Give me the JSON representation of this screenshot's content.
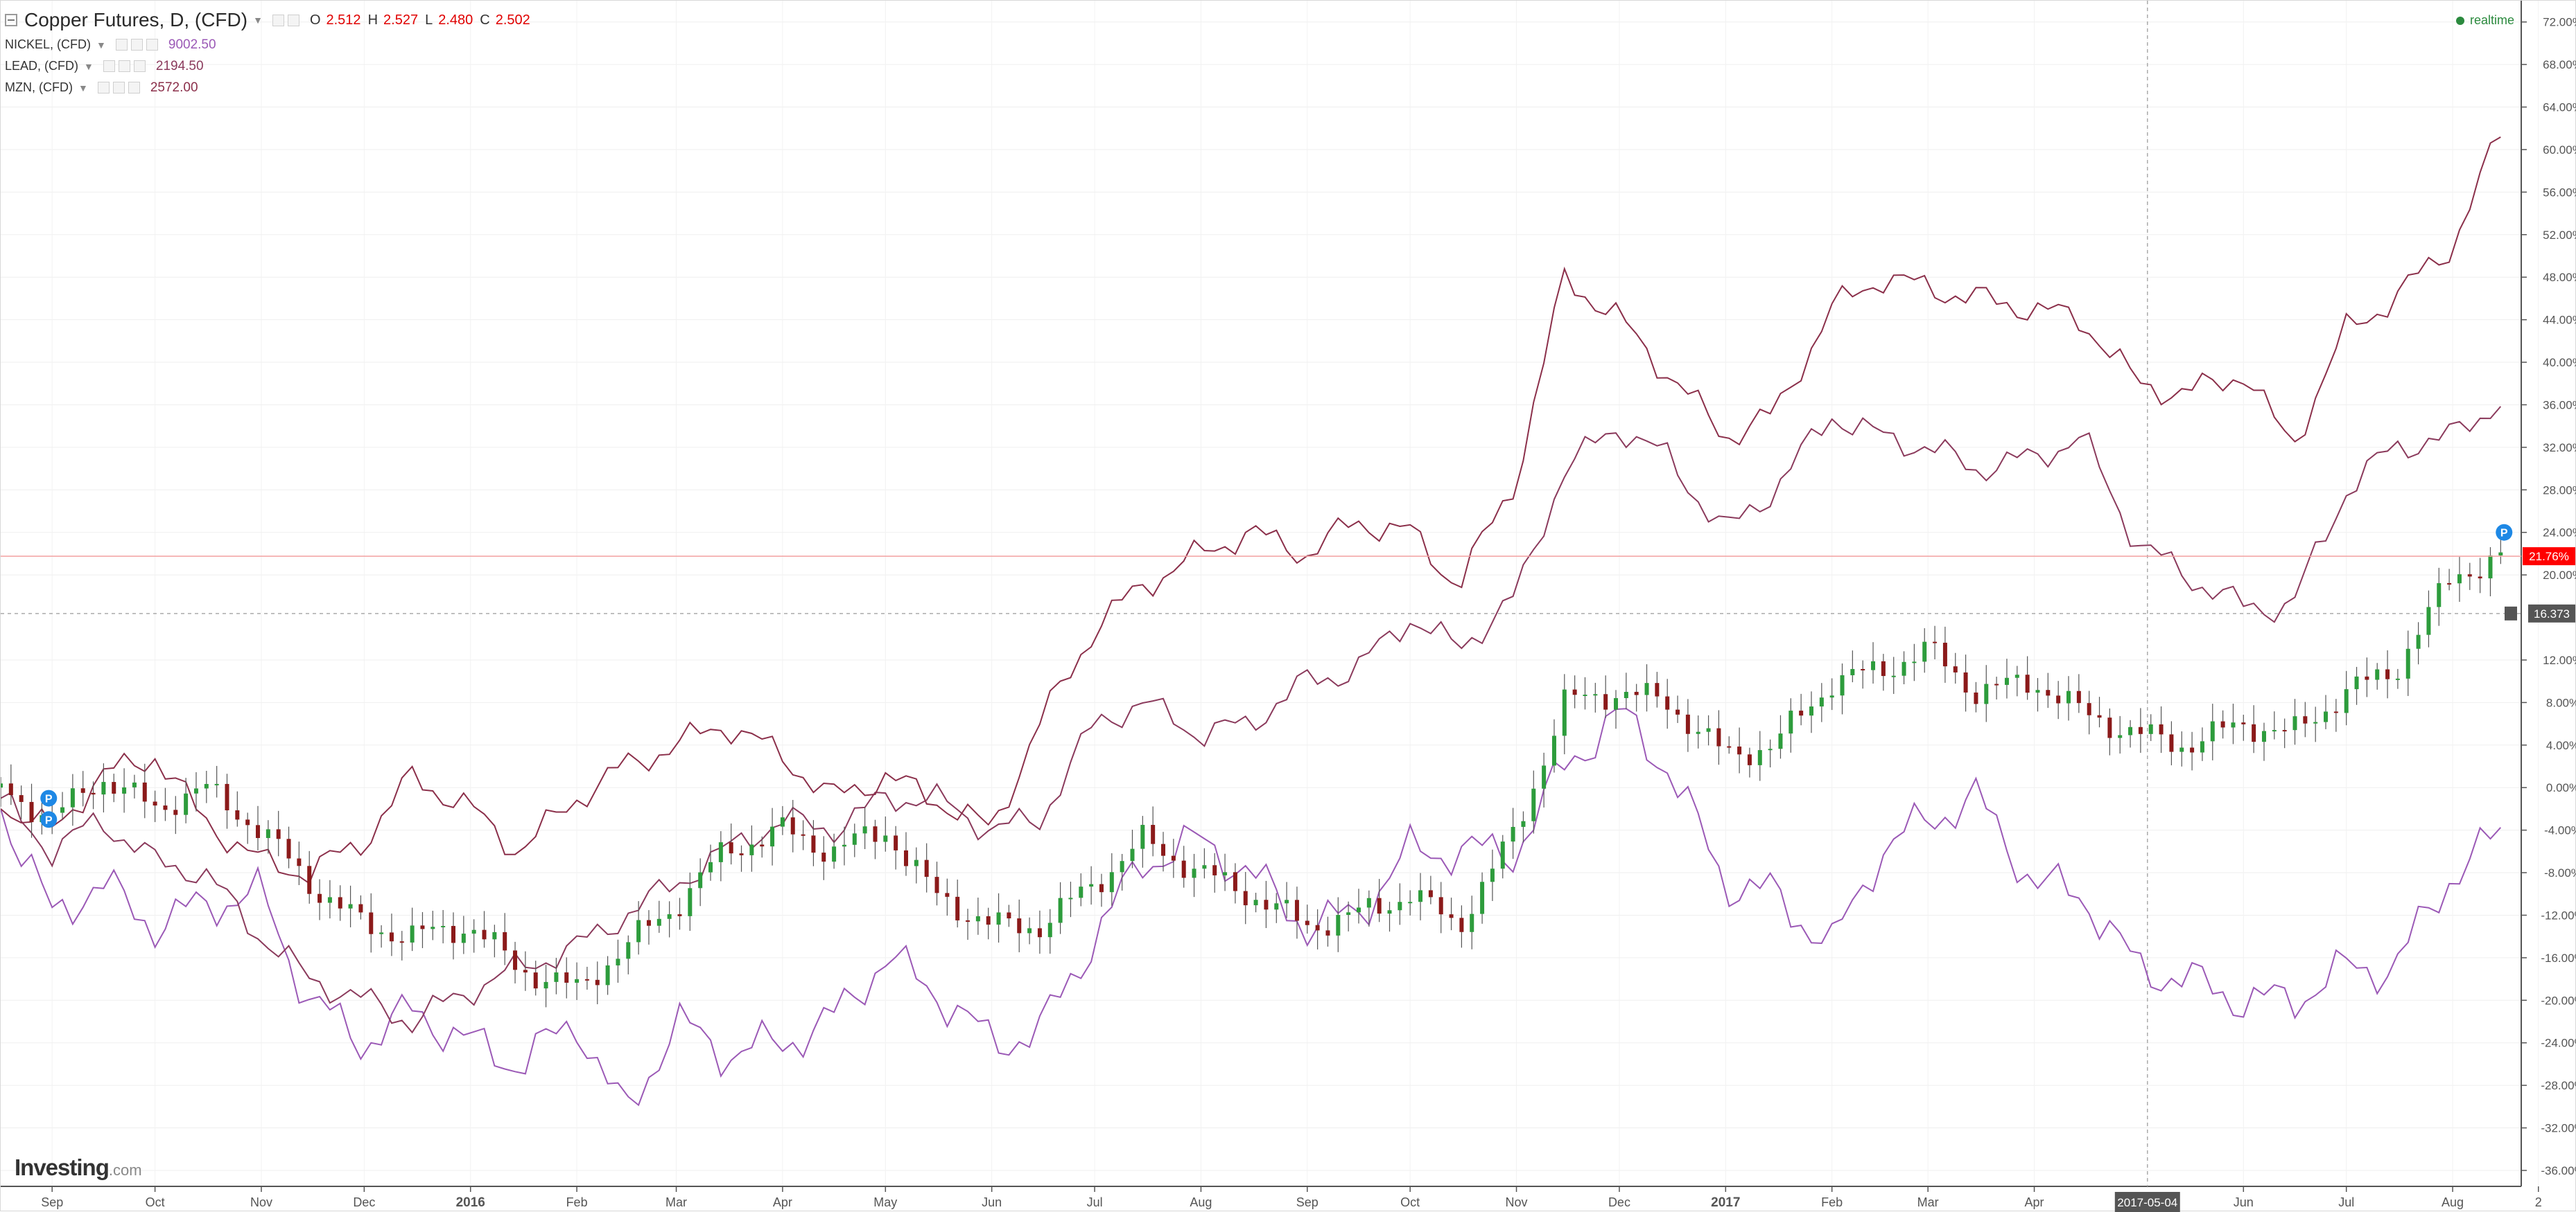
{
  "header": {
    "title": "Copper Futures, D, (CFD)",
    "ohlc": [
      {
        "label": "O",
        "value": "2.512"
      },
      {
        "label": "H",
        "value": "2.527"
      },
      {
        "label": "L",
        "value": "2.480"
      },
      {
        "label": "C",
        "value": "2.502"
      }
    ]
  },
  "comparisons": [
    {
      "symbol": "NICKEL, (CFD)",
      "value": "9002.50",
      "color": "#9b59b6"
    },
    {
      "symbol": "LEAD, (CFD)",
      "value": "2194.50",
      "color": "#8b3a5c"
    },
    {
      "symbol": "MZN, (CFD)",
      "value": "2572.00",
      "color": "#8b2f4a"
    }
  ],
  "status": {
    "realtime": "realtime"
  },
  "brand": {
    "name": "Investing",
    "suffix": ".com"
  },
  "chart_data": {
    "type": "line",
    "title": "Copper Futures, D, (CFD)",
    "y_unit": "percent change",
    "ylim": [
      -37.5,
      74
    ],
    "y_ticks": [
      "72.00%",
      "68.00%",
      "64.00%",
      "60.00%",
      "56.00%",
      "52.00%",
      "48.00%",
      "44.00%",
      "40.00%",
      "36.00%",
      "32.00%",
      "28.00%",
      "24.00%",
      "20.00%",
      "12.00%",
      "8.00%",
      "4.00%",
      "0.00%",
      "-4.00%",
      "-8.00%",
      "-12.00%",
      "-16.00%",
      "-20.00%",
      "-24.00%",
      "-28.00%",
      "-32.00%",
      "-36.00%"
    ],
    "x_ticks": [
      "Sep",
      "Oct",
      "Nov",
      "Dec",
      "2016",
      "Feb",
      "Mar",
      "Apr",
      "May",
      "Jun",
      "Jul",
      "Aug",
      "Sep",
      "Oct",
      "Nov",
      "Dec",
      "2017",
      "Feb",
      "Mar",
      "Apr",
      "2017-05-04",
      "Jun",
      "Jul",
      "Aug",
      "2"
    ],
    "x_bold_ticks": [
      "2016",
      "2017"
    ],
    "x_range": [
      "2015-08-17",
      "2017-08-21"
    ],
    "grid": true,
    "crosshair": {
      "x_label": "2017-05-04",
      "y_label": "16.373",
      "y": 16.373
    },
    "last_value": {
      "label": "21.76%",
      "value": 21.76,
      "color": "#ff0000"
    },
    "series": [
      {
        "name": "Copper Futures, D, (CFD)",
        "style": "candlestick",
        "up_color": "#2d9c3c",
        "down_color": "#8b1a1a",
        "dates": [
          "2015-08-17",
          "2015-09-01",
          "2015-09-15",
          "2015-10-01",
          "2015-10-15",
          "2015-11-01",
          "2015-11-15",
          "2015-12-01",
          "2015-12-15",
          "2016-01-01",
          "2016-01-15",
          "2016-02-01",
          "2016-02-15",
          "2016-03-01",
          "2016-03-15",
          "2016-04-01",
          "2016-04-15",
          "2016-05-01",
          "2016-05-15",
          "2016-06-01",
          "2016-06-15",
          "2016-07-01",
          "2016-07-15",
          "2016-08-01",
          "2016-08-15",
          "2016-09-01",
          "2016-09-15",
          "2016-10-01",
          "2016-10-15",
          "2016-11-01",
          "2016-11-15",
          "2016-12-01",
          "2016-12-15",
          "2017-01-01",
          "2017-01-15",
          "2017-02-01",
          "2017-02-15",
          "2017-03-01",
          "2017-03-15",
          "2017-04-01",
          "2017-04-15",
          "2017-05-01",
          "2017-05-15",
          "2017-06-01",
          "2017-06-15",
          "2017-07-01",
          "2017-07-15",
          "2017-08-01",
          "2017-08-17"
        ],
        "values": [
          0,
          -3,
          1,
          -2,
          0,
          -4,
          -9,
          -13,
          -14,
          -13,
          -17,
          -19,
          -15,
          -11,
          -6,
          -4,
          -6,
          -4,
          -10,
          -13,
          -13,
          -9,
          -5,
          -8,
          -10,
          -13,
          -12,
          -10,
          -13,
          -4,
          8,
          9,
          8,
          3,
          4,
          10,
          11,
          13,
          9,
          10,
          7,
          5,
          4,
          6,
          5,
          9,
          11,
          20,
          21.76
        ],
        "period": 1.2,
        "amplitude": 1.5
      },
      {
        "name": "NICKEL, (CFD)",
        "style": "line",
        "color": "#9b59b6",
        "dates": [
          "2015-08-17",
          "2015-09-01",
          "2015-09-15",
          "2015-10-01",
          "2015-10-15",
          "2015-11-01",
          "2015-11-15",
          "2015-12-01",
          "2015-12-15",
          "2016-01-01",
          "2016-01-15",
          "2016-02-01",
          "2016-02-15",
          "2016-03-01",
          "2016-03-15",
          "2016-04-01",
          "2016-04-15",
          "2016-05-01",
          "2016-05-15",
          "2016-06-01",
          "2016-06-15",
          "2016-07-01",
          "2016-07-15",
          "2016-08-01",
          "2016-08-15",
          "2016-09-01",
          "2016-09-15",
          "2016-10-01",
          "2016-10-15",
          "2016-11-01",
          "2016-11-15",
          "2016-12-01",
          "2016-12-15",
          "2017-01-01",
          "2017-01-15",
          "2017-02-01",
          "2017-02-15",
          "2017-03-01",
          "2017-03-15",
          "2017-04-01",
          "2017-04-15",
          "2017-05-01",
          "2017-05-15",
          "2017-06-01",
          "2017-06-15",
          "2017-07-01",
          "2017-07-15",
          "2017-08-01",
          "2017-08-17"
        ],
        "values": [
          -2,
          -12,
          -9,
          -13,
          -11,
          -10,
          -20,
          -24,
          -21,
          -24,
          -26,
          -22,
          -31,
          -22,
          -25,
          -24,
          -22,
          -16,
          -19,
          -24,
          -23,
          -14,
          -7,
          -5,
          -8,
          -13,
          -12,
          -6,
          -6,
          -6,
          2,
          7,
          2,
          -9,
          -10,
          -15,
          -6,
          -3,
          -1,
          -9,
          -10,
          -17,
          -18,
          -20,
          -20,
          -17,
          -17,
          -8,
          -4
        ],
        "period": 0.9,
        "amplitude": 2.5
      },
      {
        "name": "LEAD, (CFD)",
        "style": "line",
        "color": "#8b3a5c",
        "dates": [
          "2015-08-17",
          "2015-09-01",
          "2015-09-15",
          "2015-10-01",
          "2015-10-15",
          "2015-11-01",
          "2015-11-15",
          "2015-12-01",
          "2015-12-15",
          "2016-01-01",
          "2016-01-15",
          "2016-02-01",
          "2016-02-15",
          "2016-03-01",
          "2016-03-15",
          "2016-04-01",
          "2016-04-15",
          "2016-05-01",
          "2016-05-15",
          "2016-06-01",
          "2016-06-15",
          "2016-07-01",
          "2016-07-15",
          "2016-08-01",
          "2016-08-15",
          "2016-09-01",
          "2016-09-15",
          "2016-10-01",
          "2016-10-15",
          "2016-11-01",
          "2016-11-15",
          "2016-12-01",
          "2016-12-15",
          "2017-01-01",
          "2017-01-15",
          "2017-02-01",
          "2017-02-15",
          "2017-03-01",
          "2017-03-15",
          "2017-04-01",
          "2017-04-15",
          "2017-05-01",
          "2017-05-15",
          "2017-06-01",
          "2017-06-15",
          "2017-07-01",
          "2017-07-15",
          "2017-08-01",
          "2017-08-17"
        ],
        "values": [
          -1,
          -6,
          -3,
          -7,
          -8,
          -14,
          -18,
          -20,
          -22,
          -19,
          -17,
          -15,
          -12,
          -9,
          -6,
          -3,
          -4,
          -1,
          -1,
          -4,
          -3,
          6,
          8,
          5,
          6,
          10,
          11,
          16,
          13,
          18,
          30,
          34,
          31,
          24,
          28,
          35,
          33,
          32,
          30,
          31,
          33,
          23,
          20,
          17,
          17,
          28,
          32,
          33,
          37
        ]
      },
      {
        "name": "MZN, (CFD)",
        "style": "line",
        "color": "#8b2f4a",
        "dates": [
          "2015-08-17",
          "2015-09-01",
          "2015-09-15",
          "2015-10-01",
          "2015-10-15",
          "2015-11-01",
          "2015-11-15",
          "2015-12-01",
          "2015-12-15",
          "2016-01-01",
          "2016-01-15",
          "2016-02-01",
          "2016-02-15",
          "2016-03-01",
          "2016-03-15",
          "2016-04-01",
          "2016-04-15",
          "2016-05-01",
          "2016-05-15",
          "2016-06-01",
          "2016-06-15",
          "2016-07-01",
          "2016-07-15",
          "2016-08-01",
          "2016-08-15",
          "2016-09-01",
          "2016-09-15",
          "2016-10-01",
          "2016-10-15",
          "2016-11-01",
          "2016-11-15",
          "2016-12-01",
          "2016-12-15",
          "2017-01-01",
          "2017-01-15",
          "2017-02-01",
          "2017-02-15",
          "2017-03-01",
          "2017-03-15",
          "2017-04-01",
          "2017-04-15",
          "2017-05-01",
          "2017-05-15",
          "2017-06-01",
          "2017-06-15",
          "2017-07-01",
          "2017-07-15",
          "2017-08-01",
          "2017-08-17"
        ],
        "values": [
          -2,
          -4,
          1,
          3,
          -3,
          -7,
          -8,
          -5,
          1,
          -2,
          -6,
          -1,
          2,
          4,
          6,
          3,
          -1,
          1,
          -1,
          -4,
          6,
          15,
          19,
          22,
          24,
          22,
          25,
          24,
          19,
          29,
          48,
          44,
          39,
          33,
          35,
          45,
          48,
          47,
          46,
          45,
          44,
          38,
          37,
          39,
          32,
          43,
          46,
          51,
          63
        ]
      }
    ],
    "markers": [
      {
        "label": "P",
        "date": "2015-08-31",
        "value": -1
      },
      {
        "label": "P",
        "date": "2015-08-31",
        "value": -3
      },
      {
        "label": "P",
        "date": "2017-08-16",
        "value": 24
      }
    ]
  }
}
